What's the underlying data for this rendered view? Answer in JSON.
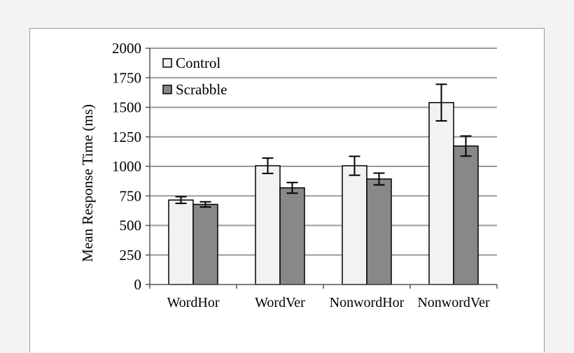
{
  "chart_data": {
    "type": "bar",
    "title": "",
    "xlabel": "",
    "ylabel": "Mean Response Time (ms)",
    "ylim": [
      0,
      2000
    ],
    "yticks": [
      "0",
      "250",
      "500",
      "750",
      "1000",
      "1250",
      "1500",
      "1750",
      "2000"
    ],
    "grid": true,
    "legend_position": "top-left",
    "categories": [
      "WordHor",
      "WordVer",
      "NonwordHor",
      "NonwordVer"
    ],
    "series": [
      {
        "name": "Control",
        "color": "#f2f2f2",
        "values": [
          715,
          1005,
          1005,
          1540
        ],
        "error": [
          28,
          65,
          80,
          155
        ]
      },
      {
        "name": "Scrabble",
        "color": "#888888",
        "values": [
          678,
          818,
          893,
          1172
        ],
        "error": [
          22,
          45,
          50,
          85
        ]
      }
    ]
  }
}
